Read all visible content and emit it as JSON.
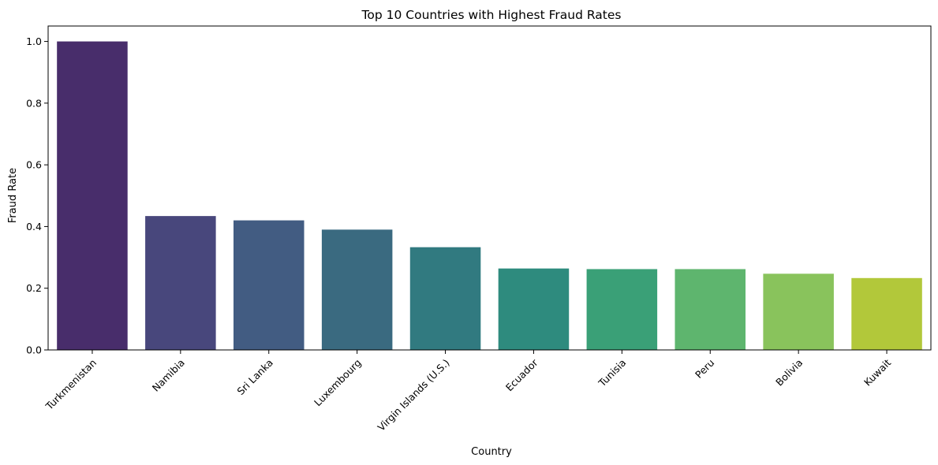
{
  "chart_data": {
    "type": "bar",
    "title": "Top 10 Countries with Highest Fraud Rates",
    "xlabel": "Country",
    "ylabel": "Fraud Rate",
    "categories": [
      "Turkmenistan",
      "Namibia",
      "Sri Lanka",
      "Luxembourg",
      "Virgin Islands (U.S.)",
      "Ecuador",
      "Tunisia",
      "Peru",
      "Bolivia",
      "Kuwait"
    ],
    "values": [
      1.0,
      0.434,
      0.42,
      0.39,
      0.333,
      0.264,
      0.262,
      0.262,
      0.247,
      0.233
    ],
    "colors": [
      "#482d6b",
      "#48477c",
      "#425c82",
      "#3a6a80",
      "#317a80",
      "#2e8b7e",
      "#3aa077",
      "#5eb56e",
      "#89c35c",
      "#b2c83a"
    ],
    "ylim": [
      0,
      1.05
    ],
    "yticks": [
      0.0,
      0.2,
      0.4,
      0.6,
      0.8,
      1.0
    ],
    "ytick_labels": [
      "0.0",
      "0.2",
      "0.4",
      "0.6",
      "0.8",
      "1.0"
    ],
    "grid": false,
    "legend": "none"
  }
}
